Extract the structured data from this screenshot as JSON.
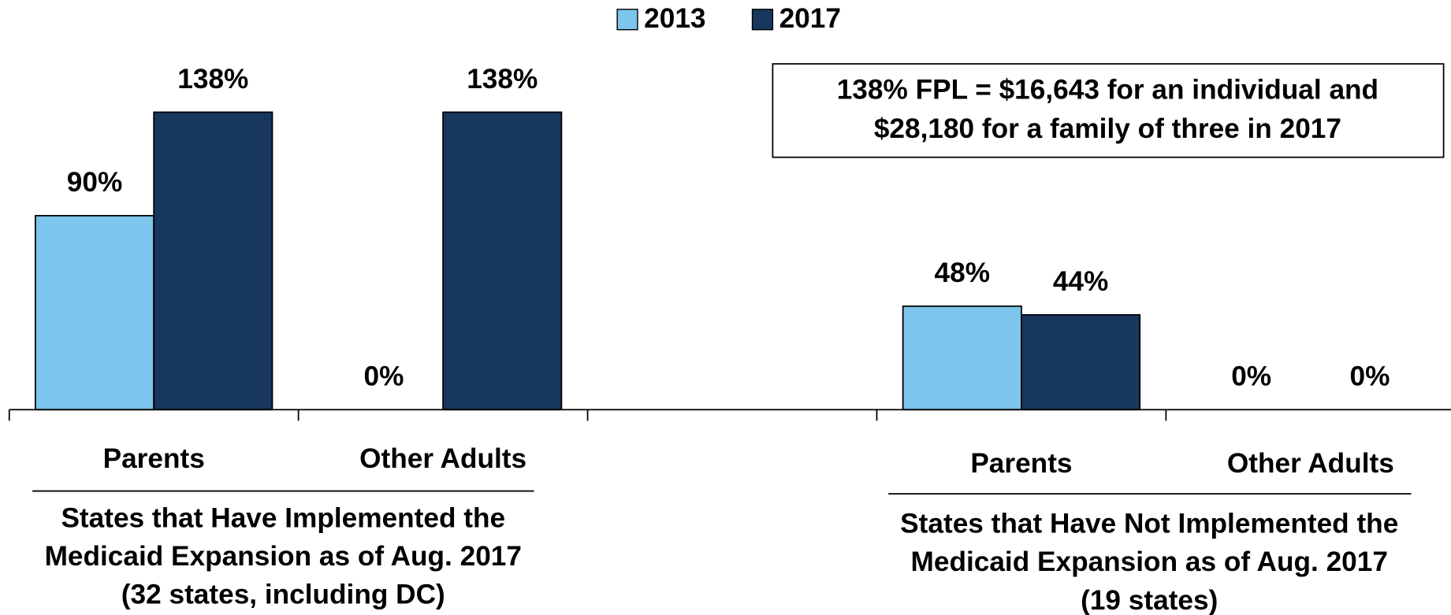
{
  "chart_data": {
    "type": "bar",
    "categories": [
      "Parents",
      "Other Adults",
      null,
      "Parents",
      "Other Adults"
    ],
    "series": [
      {
        "name": "2013",
        "color": "#7dc5ec",
        "values": [
          90,
          0,
          null,
          48,
          0
        ],
        "value_labels": [
          "90%",
          "0%",
          null,
          "48%",
          "0%"
        ]
      },
      {
        "name": "2017",
        "color": "#17375e",
        "values": [
          138,
          138,
          null,
          44,
          0
        ],
        "value_labels": [
          "138%",
          "138%",
          null,
          "44%",
          "0%"
        ]
      }
    ],
    "ylim": [
      0,
      190
    ],
    "groups": [
      {
        "lines": [
          "States that Have Implemented the",
          "Medicaid Expansion as of Aug. 2017",
          "(32 states, including DC)"
        ]
      },
      {
        "lines": [
          "States that Have Not Implemented the",
          "Medicaid Expansion as of Aug. 2017",
          "(19 states)"
        ]
      }
    ],
    "annotation": [
      "138% FPL = $16,643 for an individual and",
      "$28,180 for a family of three in 2017"
    ],
    "legend": "top"
  }
}
